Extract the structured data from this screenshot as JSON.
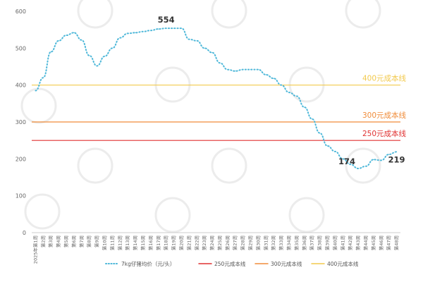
{
  "chart_data": {
    "type": "line",
    "categories": [
      "2025年第1周",
      "第2周",
      "第3周",
      "第4周",
      "第5周",
      "第6周",
      "第7周",
      "第8周",
      "第9周",
      "第10周",
      "第11周",
      "第12周",
      "第13周",
      "第14周",
      "第15周",
      "第16周",
      "第17周",
      "第18周",
      "第19周",
      "第20周",
      "第21周",
      "第22周",
      "第23周",
      "第24周",
      "第25周",
      "第26周",
      "第27周",
      "第28周",
      "第29周",
      "第30周",
      "第31周",
      "第32周",
      "第33周",
      "第34周",
      "第35周",
      "第36周",
      "第37周",
      "第38周",
      "第39周",
      "第40周",
      "第41周",
      "第42周",
      "第43周",
      "第44周",
      "第45周",
      "第46周",
      "第47周",
      "第48周"
    ],
    "ylim": [
      0,
      600
    ],
    "yticks": [
      "0",
      "100",
      "200",
      "300",
      "400",
      "500",
      "600"
    ],
    "series": [
      {
        "name": "7kg仔猪均价（元/头）",
        "color": "#4fb8d9",
        "style": "dotted",
        "values": [
          385,
          420,
          490,
          520,
          535,
          542,
          522,
          480,
          452,
          478,
          500,
          528,
          540,
          542,
          545,
          548,
          552,
          554,
          554,
          554,
          524,
          520,
          500,
          488,
          460,
          442,
          438,
          442,
          442,
          442,
          428,
          418,
          400,
          380,
          370,
          340,
          308,
          270,
          235,
          220,
          200,
          185,
          174,
          180,
          198,
          196,
          212,
          219
        ]
      },
      {
        "name": "250元成本线",
        "color": "#e03131",
        "style": "solid",
        "values_constant": 250,
        "label": "250元成本线"
      },
      {
        "name": "300元成本线",
        "color": "#f08c3a",
        "style": "solid",
        "values_constant": 300,
        "label": "300元成本线"
      },
      {
        "name": "400元成本线",
        "color": "#f2c94c",
        "style": "solid",
        "values_constant": 400,
        "label": "400元成本线"
      }
    ],
    "annotations": [
      {
        "index": 17,
        "text": "554"
      },
      {
        "index": 42,
        "text": "174"
      },
      {
        "index": 47,
        "text": "219"
      }
    ],
    "legend_position": "bottom",
    "grid": false
  }
}
